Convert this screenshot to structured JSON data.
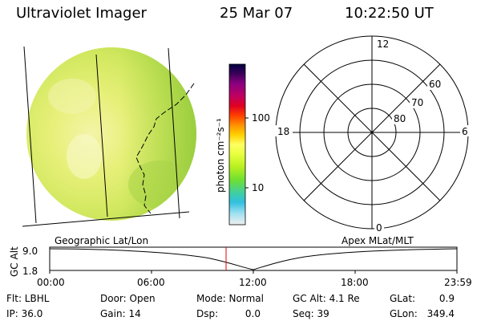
{
  "header": {
    "instrument": "Ultraviolet Imager",
    "date": "25 Mar 07",
    "time": "10:22:50 UT"
  },
  "colorbar": {
    "unit_label": "photon cm⁻²s⁻¹",
    "ticks": [
      "100",
      "10"
    ],
    "colors": [
      "#000040",
      "#3c005a",
      "#8a0080",
      "#c00060",
      "#e00020",
      "#ff4000",
      "#ff9000",
      "#ffd000",
      "#ffff60",
      "#e8ff40",
      "#b8f020",
      "#70e030",
      "#40d0a0",
      "#30c0e0",
      "#a0e0f0",
      "#f0f0f0"
    ]
  },
  "polar_plot": {
    "mlt_labels": {
      "top": "12",
      "left": "18",
      "right": "6",
      "bottom": "0"
    },
    "lat_labels": [
      "60",
      "70",
      "80"
    ]
  },
  "timeline": {
    "left_label": "Geographic Lat/Lon",
    "right_label": "Apex MLat/MLT",
    "axis_label": "GC Alt",
    "y_ticks": [
      "9.0",
      "1.8"
    ],
    "time_ticks": [
      "00:00",
      "06:00",
      "12:00",
      "18:00",
      "23:59"
    ],
    "marker_color": "#e00000"
  },
  "footer": {
    "filter": "Flt: LBHL",
    "door": "Door: Open",
    "mode": "Mode: Normal",
    "gc_alt": "GC Alt: 4.1 Re",
    "glat_label": "GLat:",
    "glat_value": "0.9",
    "ip": "IP: 36.0",
    "gain": "Gain: 14",
    "dsp_label": "Dsp:",
    "dsp_value": "0.0",
    "seq": "Seq: 39",
    "glon_label": "GLon:",
    "glon_value": "349.4"
  }
}
